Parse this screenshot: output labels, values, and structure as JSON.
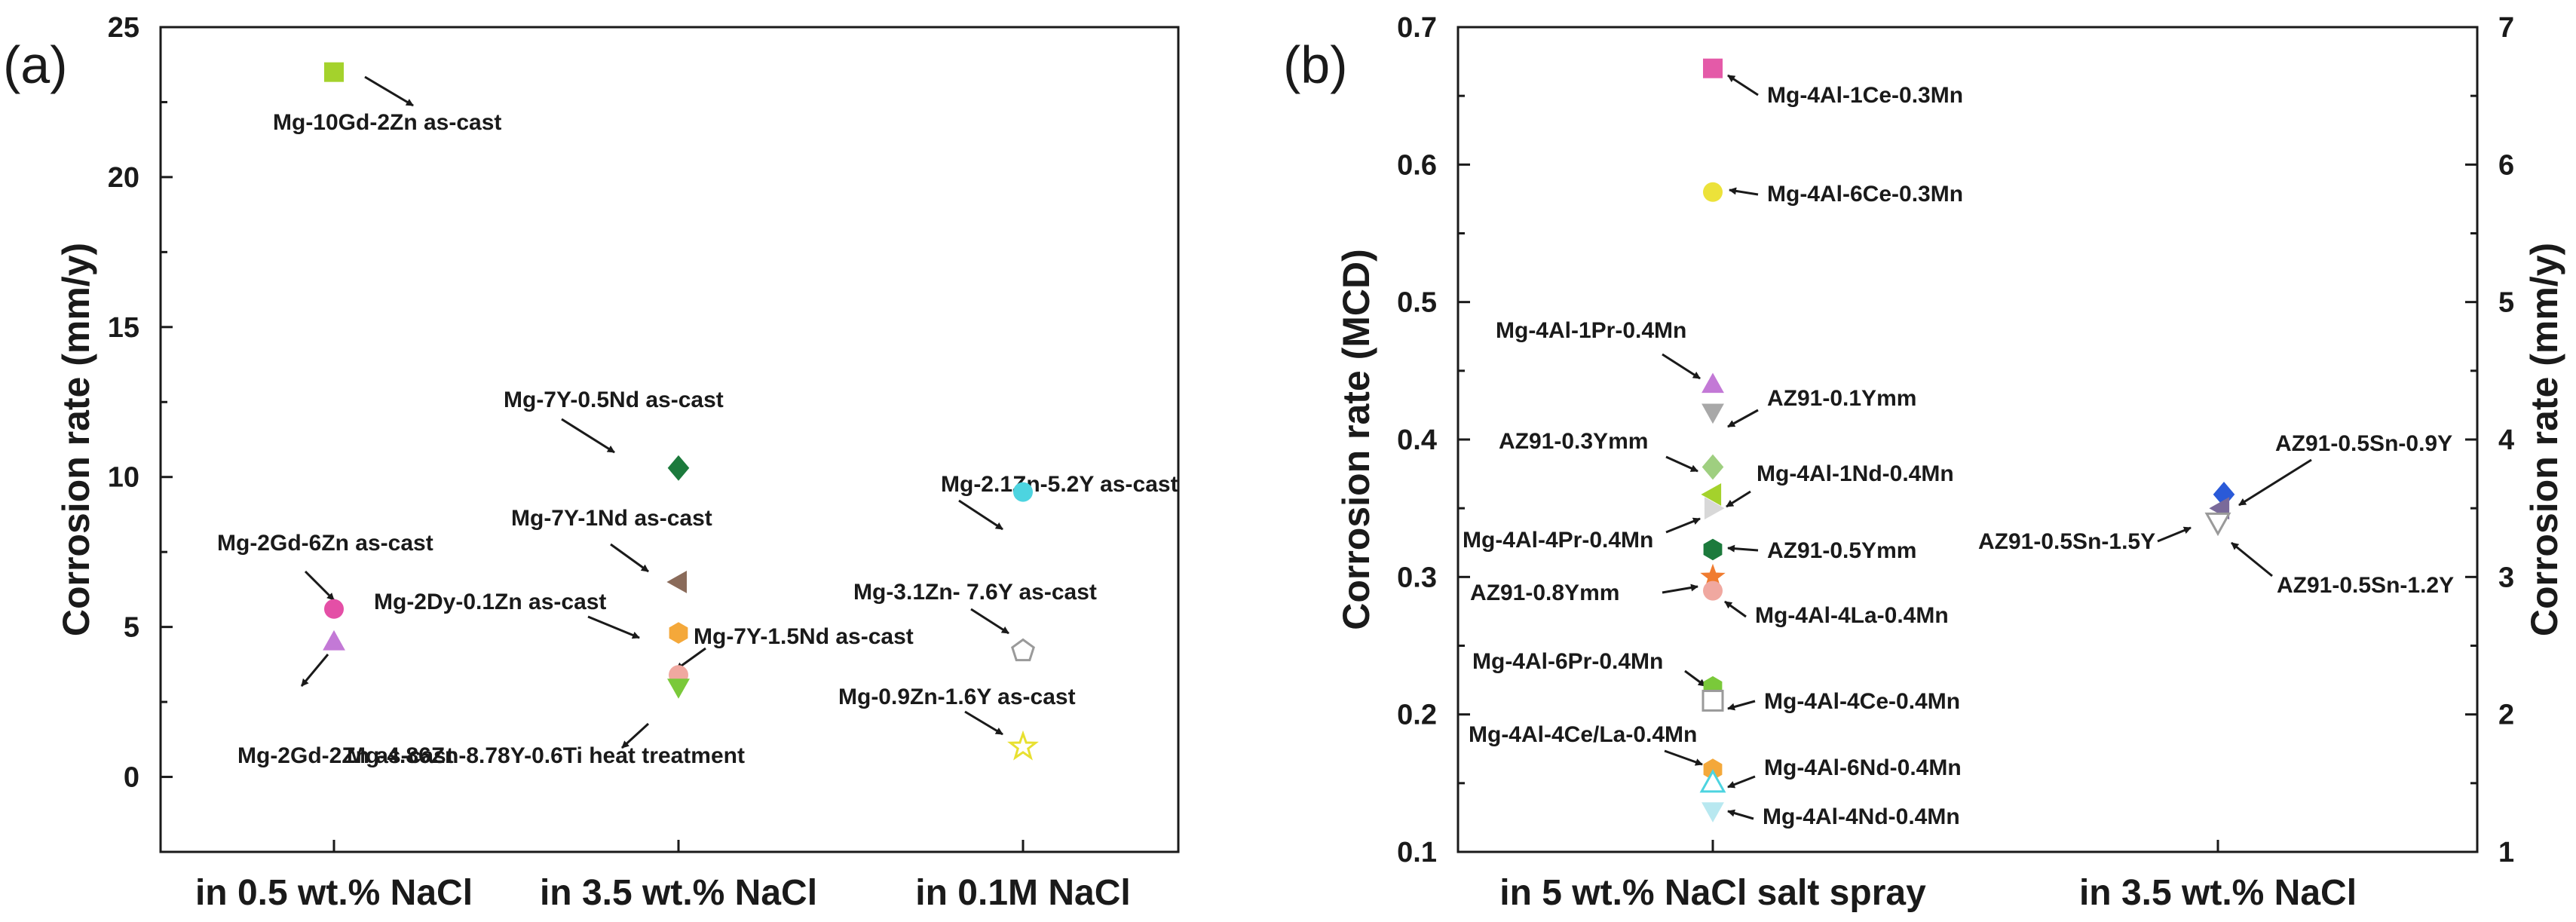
{
  "chart_data": [
    {
      "type": "scatter",
      "panel_label": "(a)",
      "ylabel": "Corrosion rate (mm/y)",
      "ylim": [
        -2.5,
        25
      ],
      "yticks": [
        0,
        5,
        10,
        15,
        20,
        25
      ],
      "categories": [
        "in 0.5 wt.% NaCl",
        "in 3.5 wt.% NaCl",
        "in 0.1M NaCl"
      ],
      "points": [
        {
          "name": "Mg-10Gd-2Zn as-cast",
          "category": 0,
          "y": 23.5,
          "marker": "square",
          "color": "#a4d22c"
        },
        {
          "name": "Mg-2Gd-6Zn as-cast",
          "category": 0,
          "y": 5.6,
          "marker": "circle",
          "color": "#e44fa6"
        },
        {
          "name": "Mg-2Gd-2Zn as-cast",
          "category": 0,
          "y": 4.5,
          "marker": "triangle-up",
          "color": "#c379d6"
        },
        {
          "name": "Mg-7Y-0.5Nd as-cast",
          "category": 1,
          "y": 10.3,
          "marker": "diamond",
          "color": "#1c7a3c"
        },
        {
          "name": "Mg-7Y-1Nd as-cast",
          "category": 1,
          "y": 6.5,
          "marker": "triangle-left",
          "color": "#8a6b5a"
        },
        {
          "name": "Mg-2Dy-0.1Zn as-cast",
          "category": 1,
          "y": 4.8,
          "marker": "hexagon",
          "color": "#f4a83a"
        },
        {
          "name": "Mg-7Y-1.5Nd as-cast",
          "category": 1,
          "y": 3.4,
          "marker": "circle",
          "color": "#f0a8a0"
        },
        {
          "name": "Mg-4.86Zn-8.78Y-0.6Ti heat treatment",
          "category": 1,
          "y": 3.0,
          "marker": "triangle-down",
          "color": "#7ac93a"
        },
        {
          "name": "Mg-2.1Zn-5.2Y as-cast",
          "category": 2,
          "y": 9.5,
          "marker": "circle",
          "color": "#4dd4e0"
        },
        {
          "name": "Mg-3.1Zn- 7.6Y as-cast",
          "category": 2,
          "y": 4.2,
          "marker": "pentagon-open",
          "color": "#9a9a9a"
        },
        {
          "name": "Mg-0.9Zn-1.6Y as-cast",
          "category": 2,
          "y": 1.0,
          "marker": "star-open",
          "color": "#e8e030"
        }
      ]
    },
    {
      "type": "scatter",
      "panel_label": "(b)",
      "ylabel": "Corrosion rate (MCD)",
      "ylabel_right": "Corrosion rate (mm/y)",
      "ylim": [
        0.1,
        0.7
      ],
      "yticks": [
        0.1,
        0.2,
        0.3,
        0.4,
        0.5,
        0.6,
        0.7
      ],
      "ytick_labels": [
        "0.1",
        "0.2",
        "0.3",
        "0.4",
        "0.5",
        "0.6",
        "0.7"
      ],
      "ylim_right": [
        1,
        7
      ],
      "yticks_right": [
        1,
        2,
        3,
        4,
        5,
        6,
        7
      ],
      "ytick_labels_right": [
        "1",
        "2",
        "3",
        "4",
        "5",
        "6",
        "7"
      ],
      "categories": [
        "in 5 wt.% NaCl salt spray",
        "in 3.5 wt.% NaCl"
      ],
      "points": [
        {
          "name": "Mg-4Al-1Ce-0.3Mn",
          "category": 0,
          "y": 0.67,
          "marker": "square",
          "color": "#e45aa8"
        },
        {
          "name": "Mg-4Al-6Ce-0.3Mn",
          "category": 0,
          "y": 0.58,
          "marker": "circle",
          "color": "#ece23a"
        },
        {
          "name": "Mg-4Al-1Pr-0.4Mn",
          "category": 0,
          "y": 0.44,
          "marker": "triangle-up",
          "color": "#c379d6"
        },
        {
          "name": "AZ91-0.1Ymm",
          "category": 0,
          "y": 0.42,
          "marker": "triangle-down",
          "color": "#a8a8a8"
        },
        {
          "name": "AZ91-0.3Ymm",
          "category": 0,
          "y": 0.38,
          "marker": "diamond",
          "color": "#9fcf80"
        },
        {
          "name": "Mg-4Al-1Nd-0.4Mn",
          "category": 0,
          "y": 0.36,
          "marker": "triangle-left",
          "color": "#a4d22c"
        },
        {
          "name": "Mg-4Al-4Pr-0.4Mn",
          "category": 0,
          "y": 0.35,
          "marker": "triangle-right",
          "color": "#d8d8d8"
        },
        {
          "name": "AZ91-0.5Ymm",
          "category": 0,
          "y": 0.32,
          "marker": "hexagon",
          "color": "#1c7a3c"
        },
        {
          "name": "AZ91-0.8Ymm",
          "category": 0,
          "y": 0.3,
          "marker": "star",
          "color": "#f07c30"
        },
        {
          "name": "Mg-4Al-4La-0.4Mn",
          "category": 0,
          "y": 0.29,
          "marker": "circle",
          "color": "#f0a8a0"
        },
        {
          "name": "Mg-4Al-6Pr-0.4Mn",
          "category": 0,
          "y": 0.22,
          "marker": "hexagon",
          "color": "#7ac93a"
        },
        {
          "name": "Mg-4Al-4Ce-0.4Mn",
          "category": 0,
          "y": 0.21,
          "marker": "square-open",
          "color": "#9a9a9a"
        },
        {
          "name": "Mg-4Al-6Nd-0.4Mn",
          "category": 0,
          "y": 0.16,
          "marker": "hexagon",
          "color": "#f4a83a"
        },
        {
          "name": "Mg-4Al-4Ce/La-0.4Mn",
          "category": 0,
          "y": 0.15,
          "marker": "triangle-up-open",
          "color": "#4dd4e0"
        },
        {
          "name": "Mg-4Al-4Nd-0.4Mn",
          "category": 0,
          "y": 0.13,
          "marker": "triangle-down",
          "color": "#b8e8f0"
        },
        {
          "name": "AZ91-0.5Sn-0.9Y",
          "category": 1,
          "y_right": 3.6,
          "marker": "diamond",
          "color": "#2a5ad8"
        },
        {
          "name": "AZ91-0.5Sn-1.5Y",
          "category": 1,
          "y_right": 3.5,
          "marker": "triangle-left",
          "color": "#7a6a9a"
        },
        {
          "name": "AZ91-0.5Sn-1.2Y",
          "category": 1,
          "y_right": 3.4,
          "marker": "triangle-down-open",
          "color": "#9a9a9a"
        }
      ]
    }
  ]
}
